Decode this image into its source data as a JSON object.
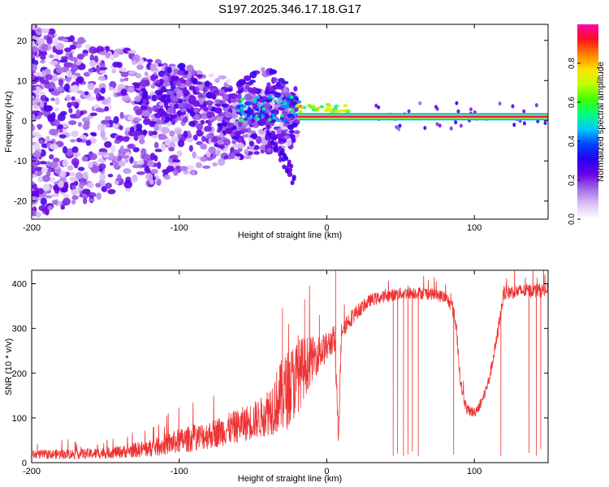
{
  "title": "S197.2025.346.17.18.G17",
  "chart_data": [
    {
      "type": "heatmap",
      "title": "S197.2025.346.17.18.G17",
      "xlabel": "Height of straight line (km)",
      "ylabel": "Frequency (Hz)",
      "xlim": [
        -200,
        150
      ],
      "ylim": [
        -24.5,
        24
      ],
      "xticks": [
        -200,
        -100,
        0,
        100
      ],
      "yticks": [
        -20,
        -10,
        0,
        10,
        20
      ],
      "xtick_labels": [
        "-200",
        "-100",
        "0",
        "100"
      ],
      "ytick_labels": [
        "-20",
        "-10",
        "0",
        "10",
        "20"
      ],
      "colorbar": {
        "label": "Normalized spectral amplitude",
        "range": [
          0,
          1
        ],
        "ticks": [
          0.0,
          0.2,
          0.4,
          0.6,
          0.8
        ],
        "tick_labels": [
          "0.0",
          "0.2",
          "0.4",
          "0.6",
          "0.8"
        ],
        "colormap": [
          "#ffffff",
          "#dcc2f7",
          "#a46be8",
          "#6a00e6",
          "#2600f0",
          "#0044ff",
          "#00c8ff",
          "#00ff80",
          "#40ff00",
          "#c0ff00",
          "#ffe000",
          "#ff8000",
          "#ff1020",
          "#ff00b0"
        ]
      },
      "features": {
        "carrier_frequency_hz": 1.0,
        "carrier_start_km": -20,
        "carrier_end_km": 150,
        "carrier_amplitude": 0.95,
        "scatter_region_km": [
          -200,
          -20
        ],
        "wander_region_km": [
          -130,
          -20
        ]
      }
    },
    {
      "type": "line",
      "xlabel": "Height of straight line (km)",
      "ylabel": "SNR (10 * v/v)",
      "xlim": [
        -200,
        150
      ],
      "ylim": [
        0,
        430
      ],
      "xticks": [
        -200,
        -100,
        0,
        100
      ],
      "yticks": [
        0,
        100,
        200,
        300,
        400
      ],
      "xtick_labels": [
        "-200",
        "-100",
        "0",
        "100"
      ],
      "ytick_labels": [
        "0",
        "100",
        "200",
        "300",
        "400"
      ],
      "line_color": "#ee3333",
      "series": [
        {
          "name": "SNR",
          "x": [
            -200,
            -160,
            -140,
            -120,
            -100,
            -80,
            -60,
            -45,
            -40,
            -35,
            -30,
            -25,
            -20,
            -15,
            -10,
            -5,
            0,
            5,
            8,
            10,
            15,
            20,
            25,
            30,
            40,
            50,
            60,
            70,
            80,
            85,
            88,
            90,
            92,
            95,
            100,
            105,
            110,
            115,
            120,
            130,
            140,
            150
          ],
          "mean": [
            18,
            20,
            24,
            32,
            48,
            62,
            82,
            100,
            115,
            132,
            150,
            170,
            192,
            214,
            232,
            246,
            258,
            278,
            70,
            300,
            318,
            336,
            350,
            364,
            372,
            378,
            380,
            378,
            370,
            350,
            300,
            200,
            155,
            118,
            112,
            135,
            185,
            272,
            380,
            383,
            385,
            385
          ],
          "noise": [
            10,
            12,
            14,
            20,
            28,
            32,
            38,
            45,
            55,
            70,
            85,
            90,
            85,
            70,
            50,
            40,
            35,
            30,
            30,
            25,
            20,
            18,
            15,
            14,
            14,
            14,
            14,
            14,
            14,
            16,
            20,
            18,
            14,
            12,
            12,
            12,
            14,
            16,
            16,
            16,
            16,
            16
          ],
          "dropouts": [
            {
              "x": 45,
              "y": 15
            },
            {
              "x": 48,
              "y": 20
            },
            {
              "x": 52,
              "y": 15
            },
            {
              "x": 55,
              "y": 18
            },
            {
              "x": 58,
              "y": 25
            },
            {
              "x": 62,
              "y": 14
            },
            {
              "x": 86,
              "y": 18
            },
            {
              "x": 118,
              "y": 15
            },
            {
              "x": 137,
              "y": 22
            },
            {
              "x": 142,
              "y": 15
            },
            {
              "x": 145,
              "y": 30
            }
          ],
          "spikes": [
            {
              "x": 6,
              "y": 430
            },
            {
              "x": -30,
              "y": 345
            },
            {
              "x": -15,
              "y": 365
            },
            {
              "x": -5,
              "y": 330
            }
          ]
        }
      ]
    }
  ]
}
